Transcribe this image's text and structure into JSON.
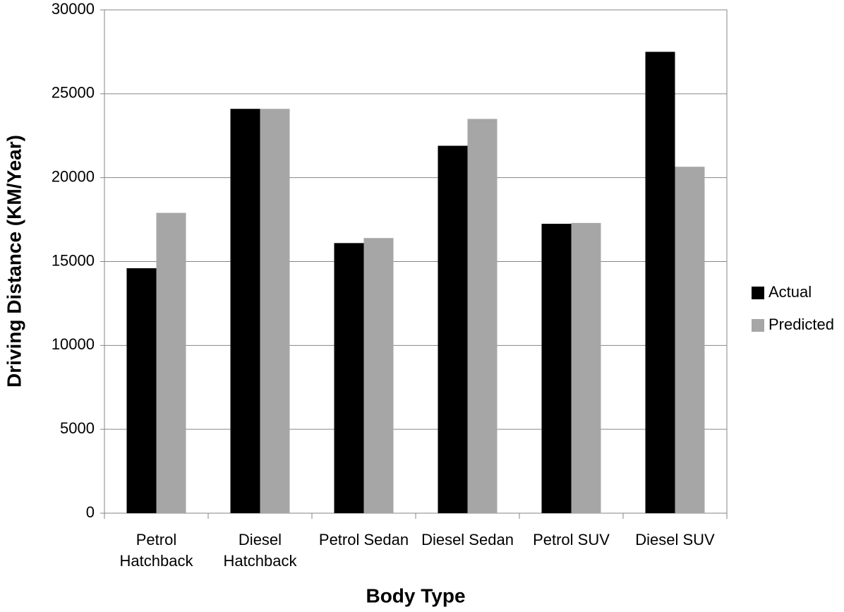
{
  "chart_data": {
    "type": "bar",
    "x_label": "Body Type",
    "y_label": "Driving Distance (KM/Year)",
    "categories": [
      "Petrol Hatchback",
      "Diesel Hatchback",
      "Petrol Sedan",
      "Diesel Sedan",
      "Petrol SUV",
      "Diesel SUV"
    ],
    "series": [
      {
        "name": "Actual",
        "color": "#000000",
        "values": [
          14600,
          24100,
          16100,
          21900,
          17250,
          27500
        ]
      },
      {
        "name": "Predicted",
        "color": "#a6a6a6",
        "values": [
          17900,
          24100,
          16400,
          23500,
          17300,
          20650
        ]
      }
    ],
    "ylim": [
      0,
      30000
    ],
    "yticks": [
      0,
      5000,
      10000,
      15000,
      20000,
      25000,
      30000
    ],
    "grid": true,
    "legend": "right"
  }
}
